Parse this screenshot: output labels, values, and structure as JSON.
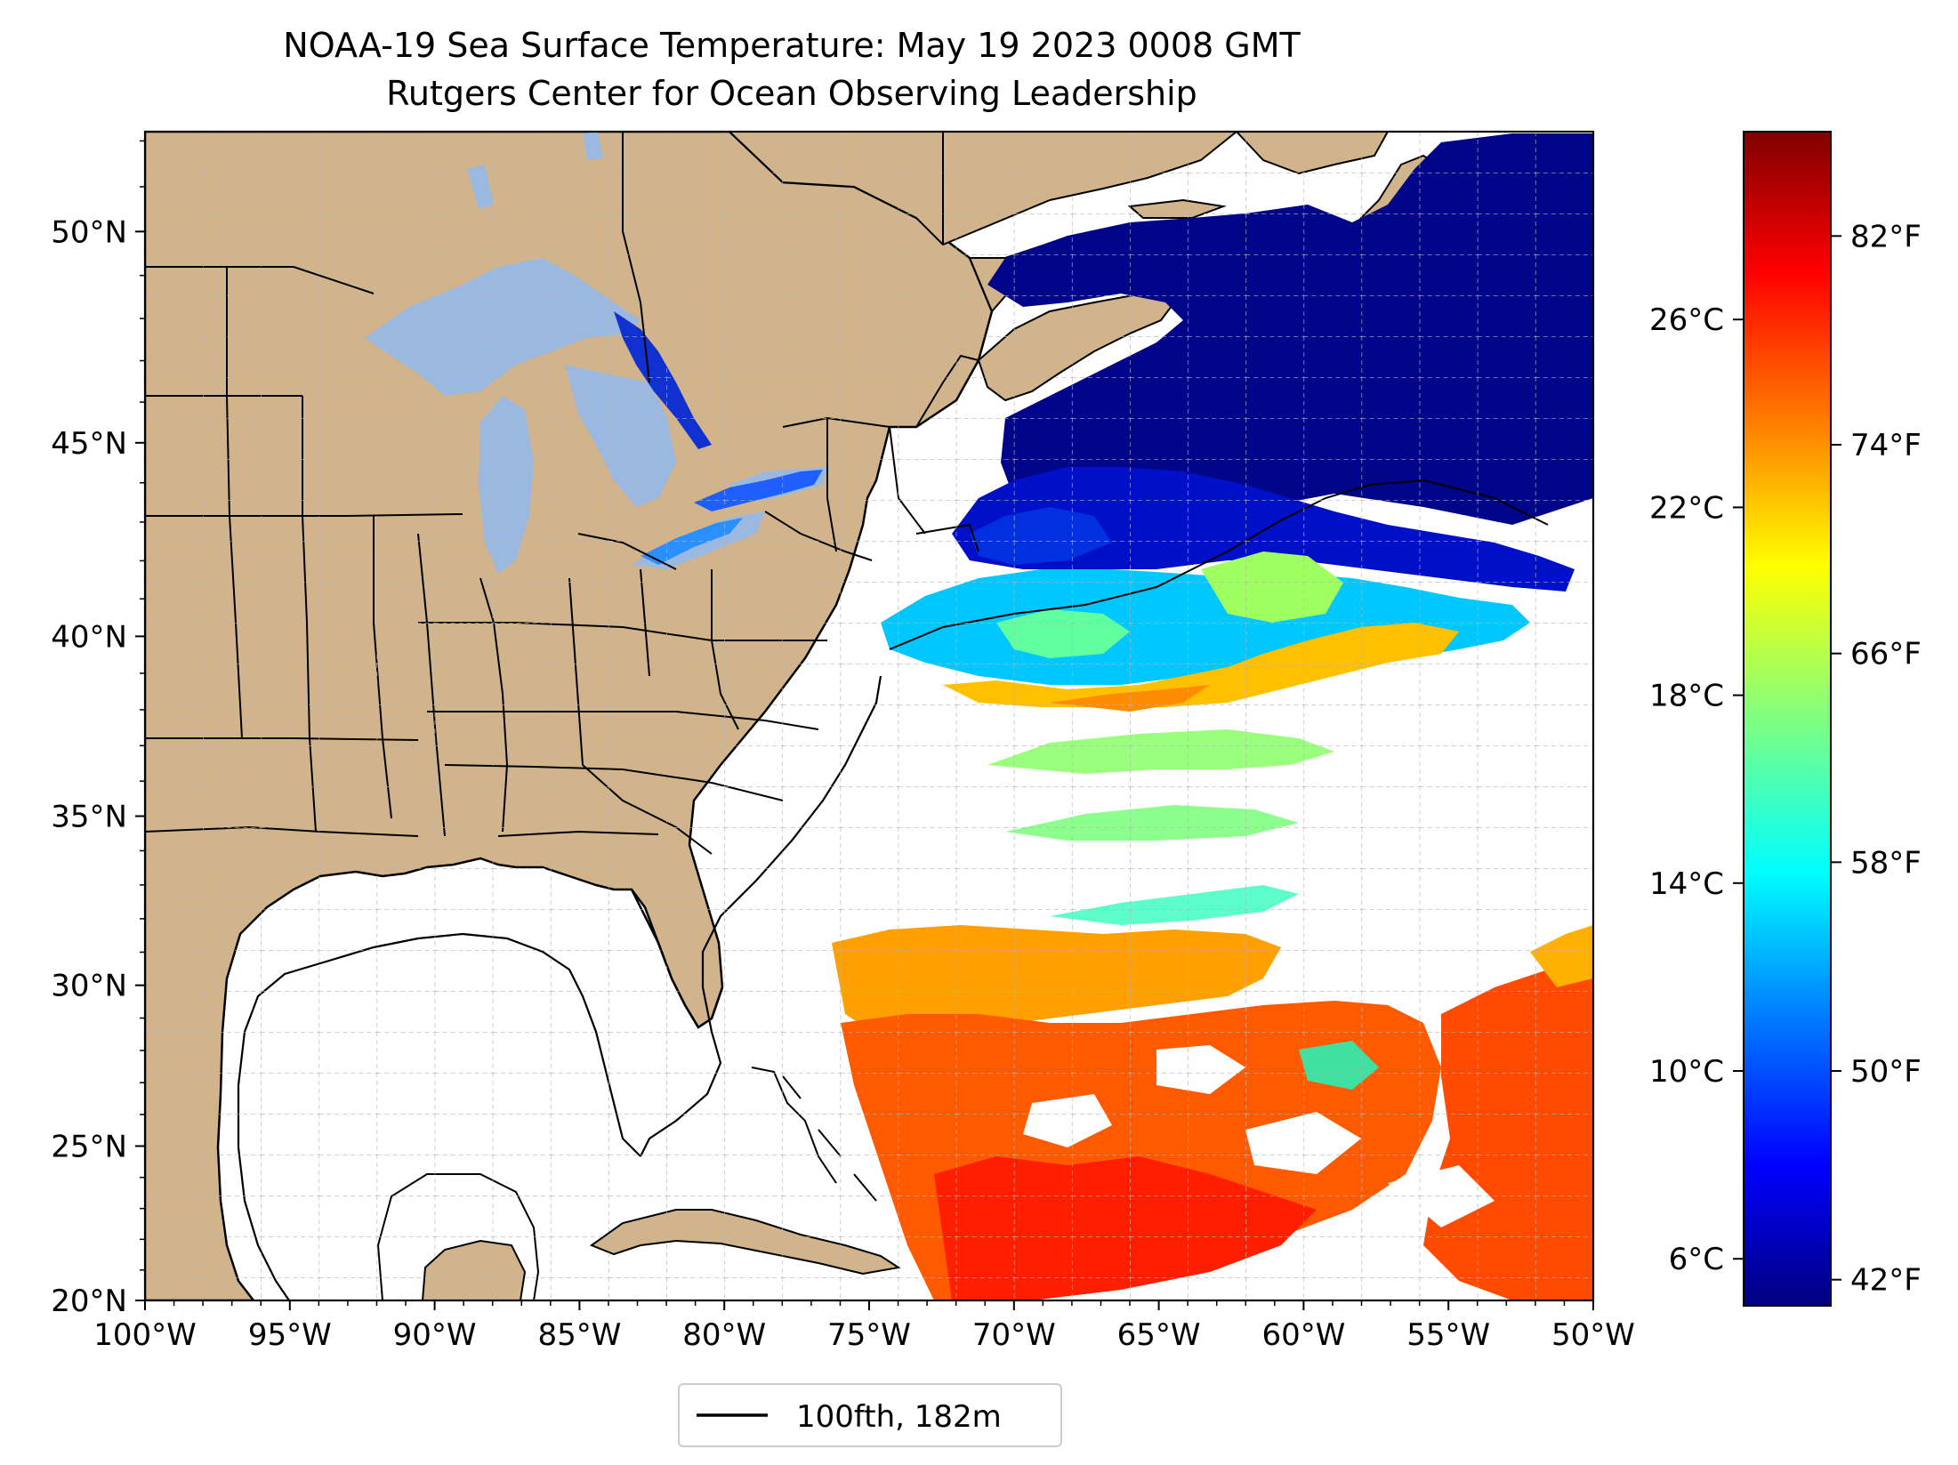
{
  "title": "NOAA-19 Sea Surface Temperature: May 19 2023 0008 GMT",
  "subtitle": "Rutgers Center for Ocean Observing Leadership",
  "map": {
    "lon_ticks": [
      "100°W",
      "95°W",
      "90°W",
      "85°W",
      "80°W",
      "75°W",
      "70°W",
      "65°W",
      "60°W",
      "55°W",
      "50°W"
    ],
    "lat_ticks": [
      "50°N",
      "45°N",
      "40°N",
      "35°N",
      "30°N",
      "25°N",
      "20°N"
    ],
    "extent": {
      "lon": [
        -100,
        -50
      ],
      "lat": [
        20,
        52.2
      ]
    },
    "gridlines": true,
    "colors": {
      "land": "#d2b48c",
      "lakes": "#9ab8e0",
      "ocean_no_data": "#ffffff",
      "gridline": "#b4b4b4",
      "isobath": "#000000"
    }
  },
  "legend": {
    "label": "100fth, 182m",
    "placement": "bottom-center"
  },
  "colorbar": {
    "colormap": "jet",
    "celsius_ticks": [
      "26°C",
      "22°C",
      "18°C",
      "14°C",
      "10°C",
      "6°C"
    ],
    "fahrenheit_ticks": [
      "82°F",
      "74°F",
      "66°F",
      "58°F",
      "50°F",
      "42°F"
    ],
    "range_f": [
      41,
      86
    ],
    "colors": [
      "#000080",
      "#0000ff",
      "#0080ff",
      "#00ffff",
      "#80ff80",
      "#ffff00",
      "#ff8000",
      "#ff0000",
      "#800000"
    ]
  }
}
